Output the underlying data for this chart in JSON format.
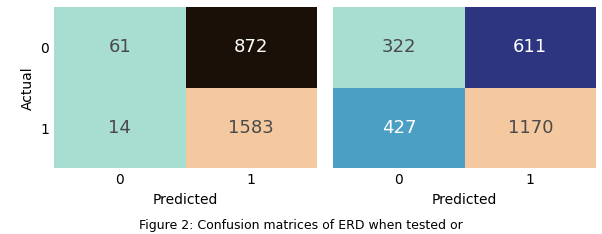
{
  "matrix1": [
    [
      61,
      872
    ],
    [
      14,
      1583
    ]
  ],
  "matrix2": [
    [
      322,
      611
    ],
    [
      427,
      1170
    ]
  ],
  "colors1": [
    [
      "#a8ddd1",
      "#1a1008"
    ],
    [
      "#a8ddd1",
      "#f5c9a0"
    ]
  ],
  "colors2": [
    [
      "#a8ddd1",
      "#2d3480"
    ],
    [
      "#4b9fc4",
      "#f5c9a0"
    ]
  ],
  "text_colors1": [
    [
      "#4a4a4a",
      "#ffffff"
    ],
    [
      "#4a4a4a",
      "#4a4a4a"
    ]
  ],
  "text_colors2": [
    [
      "#4a4a4a",
      "#ffffff"
    ],
    [
      "#ffffff",
      "#4a4a4a"
    ]
  ],
  "xlabel": "Predicted",
  "ylabel": "Actual",
  "xtick_labels": [
    "0",
    "1"
  ],
  "ytick_labels": [
    "0",
    "1"
  ],
  "fontsize_cell": 13,
  "fontsize_axis": 10,
  "fontsize_tick": 10,
  "background_color": "#ffffff",
  "caption": "Figure 2: Confusion matrices of ERD when tested or"
}
